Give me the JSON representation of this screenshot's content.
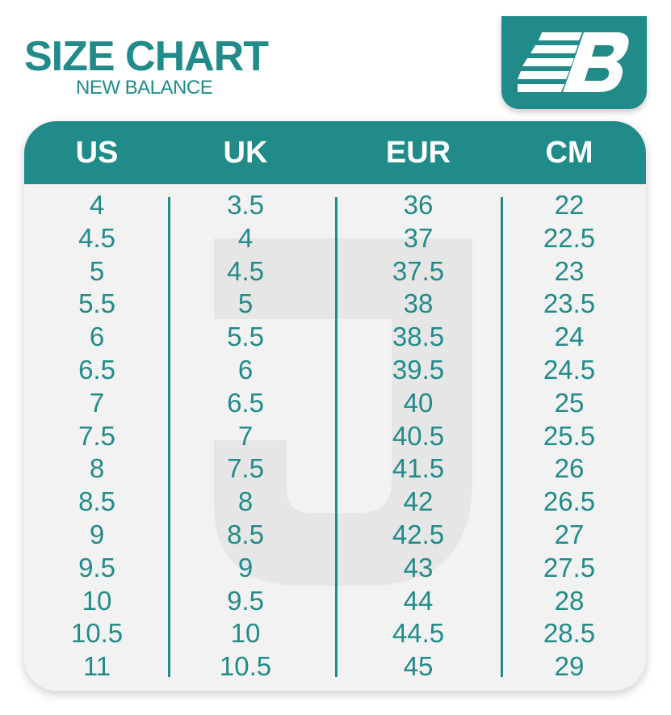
{
  "header": {
    "title": "SIZE CHART",
    "subtitle": "NEW BALANCE",
    "logo_text": "NB"
  },
  "colors": {
    "brand": "#218b8a",
    "background": "#f2f2f2"
  },
  "chart_data": {
    "type": "table",
    "columns": [
      "US",
      "UK",
      "EUR",
      "CM"
    ],
    "rows": [
      [
        "4",
        "3.5",
        "36",
        "22"
      ],
      [
        "4.5",
        "4",
        "37",
        "22.5"
      ],
      [
        "5",
        "4.5",
        "37.5",
        "23"
      ],
      [
        "5.5",
        "5",
        "38",
        "23.5"
      ],
      [
        "6",
        "5.5",
        "38.5",
        "24"
      ],
      [
        "6.5",
        "6",
        "39.5",
        "24.5"
      ],
      [
        "7",
        "6.5",
        "40",
        "25"
      ],
      [
        "7.5",
        "7",
        "40.5",
        "25.5"
      ],
      [
        "8",
        "7.5",
        "41.5",
        "26"
      ],
      [
        "8.5",
        "8",
        "42",
        "26.5"
      ],
      [
        "9",
        "8.5",
        "42.5",
        "27"
      ],
      [
        "9.5",
        "9",
        "43",
        "27.5"
      ],
      [
        "10",
        "9.5",
        "44",
        "28"
      ],
      [
        "10.5",
        "10",
        "44.5",
        "28.5"
      ],
      [
        "11",
        "10.5",
        "45",
        "29"
      ]
    ]
  }
}
